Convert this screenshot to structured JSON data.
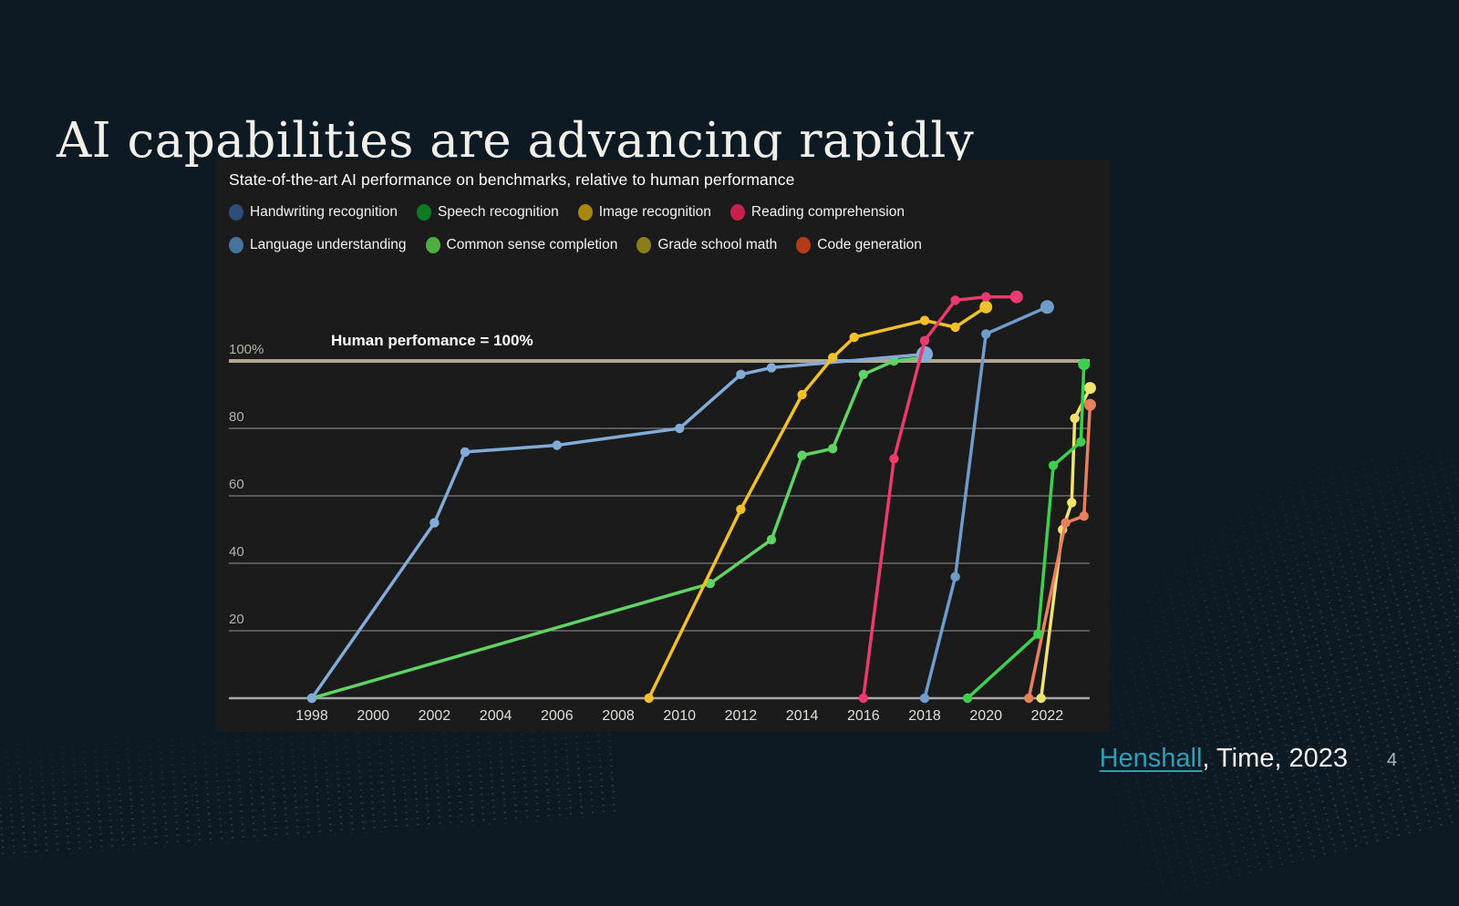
{
  "slide": {
    "title": "AI capabilities are advancing rapidly",
    "citation": {
      "link_text": "Henshall",
      "suffix": ", Time, 2023"
    },
    "page_number": "4"
  },
  "chart": {
    "title": "State-of-the-art AI performance on benchmarks, relative to human performance",
    "annotation": "Human perfomance = 100%",
    "colors": {
      "panel_bg": "#1b1b1b",
      "grid": "#949494",
      "baseline": "#a8a8a8",
      "human_line": "#b0a890",
      "y_tick_text": "#b6b3ab",
      "x_tick_text": "#e0ded8"
    }
  },
  "chart_data": {
    "type": "line",
    "title": "State-of-the-art AI performance on benchmarks, relative to human performance",
    "annotation": "Human perfomance = 100%",
    "xlabel": "",
    "ylabel": "",
    "x_axis": {
      "ticks": [
        1998,
        2000,
        2002,
        2004,
        2006,
        2008,
        2010,
        2012,
        2014,
        2016,
        2018,
        2020,
        2022
      ],
      "min": 1996.9,
      "max": 2023.8,
      "grid": false
    },
    "y_axis": {
      "ticks": [
        {
          "label": "20",
          "value": 20
        },
        {
          "label": "40",
          "value": 40
        },
        {
          "label": "60",
          "value": 60
        },
        {
          "label": "80",
          "value": 80
        },
        {
          "label": "100%",
          "value": 100
        }
      ],
      "min": 0,
      "max": 125,
      "grid": true,
      "human_performance_line": 100
    },
    "legend_rows": [
      [
        "Handwriting recognition",
        "Speech recognition",
        "Image recognition",
        "Reading comprehension"
      ],
      [
        "Language understanding",
        "Common sense completion",
        "Grade school math",
        "Code generation"
      ]
    ],
    "series": [
      {
        "name": "Handwriting recognition",
        "line_color": "#82abd8",
        "legend_color": "#2e4d7b",
        "end_radius": 9,
        "points": [
          [
            1998,
            0
          ],
          [
            2002,
            52
          ],
          [
            2003,
            73
          ],
          [
            2006,
            75
          ],
          [
            2010,
            80
          ],
          [
            2012,
            96
          ],
          [
            2013,
            98
          ],
          [
            2018,
            102
          ]
        ]
      },
      {
        "name": "Speech recognition",
        "line_color": "#5fd364",
        "legend_color": "#0e7a22",
        "end_radius": 5.2,
        "points": [
          [
            1998,
            0
          ],
          [
            2011,
            34
          ],
          [
            2013,
            47
          ],
          [
            2014,
            72
          ],
          [
            2015,
            74
          ],
          [
            2016,
            96
          ],
          [
            2017,
            100
          ],
          [
            2018,
            101
          ]
        ]
      },
      {
        "name": "Image recognition",
        "line_color": "#f2c029",
        "legend_color": "#a8860b",
        "end_radius": 7,
        "points": [
          [
            2009,
            0
          ],
          [
            2012,
            56
          ],
          [
            2014,
            90
          ],
          [
            2015,
            101
          ],
          [
            2015.7,
            107
          ],
          [
            2018,
            112
          ],
          [
            2019,
            110
          ],
          [
            2020,
            116
          ]
        ]
      },
      {
        "name": "Reading comprehension",
        "line_color": "#ea3a6e",
        "legend_color": "#c81f4e",
        "end_radius": 7,
        "points": [
          [
            2016,
            0
          ],
          [
            2017,
            71
          ],
          [
            2018,
            106
          ],
          [
            2019,
            118
          ],
          [
            2020,
            119
          ],
          [
            2021,
            119
          ]
        ]
      },
      {
        "name": "Language understanding",
        "line_color": "#6f9cca",
        "legend_color": "#46749e",
        "end_radius": 7.5,
        "points": [
          [
            2018,
            0
          ],
          [
            2019,
            36
          ],
          [
            2020,
            108
          ],
          [
            2022,
            116
          ]
        ]
      },
      {
        "name": "Common sense completion",
        "line_color": "#3ecf50",
        "legend_color": "#4cae3f",
        "end_radius": 6.5,
        "points": [
          [
            2019.4,
            0
          ],
          [
            2021.7,
            19
          ],
          [
            2022.2,
            69
          ],
          [
            2023.1,
            76
          ],
          [
            2023.2,
            99
          ]
        ]
      },
      {
        "name": "Grade school math",
        "line_color": "#f2e173",
        "legend_color": "#8a7d1a",
        "end_radius": 6.5,
        "points": [
          [
            2021.8,
            0
          ],
          [
            2022.5,
            50
          ],
          [
            2022.8,
            58
          ],
          [
            2022.9,
            83
          ],
          [
            2023.4,
            92
          ]
        ]
      },
      {
        "name": "Code generation",
        "line_color": "#e8805e",
        "legend_color": "#b33b1a",
        "end_radius": 6.5,
        "points": [
          [
            2021.4,
            0
          ],
          [
            2022.6,
            52
          ],
          [
            2023.2,
            54
          ],
          [
            2023.4,
            87
          ]
        ]
      }
    ],
    "draw_order": [
      1,
      0,
      2,
      6,
      7,
      5,
      4,
      3
    ]
  }
}
